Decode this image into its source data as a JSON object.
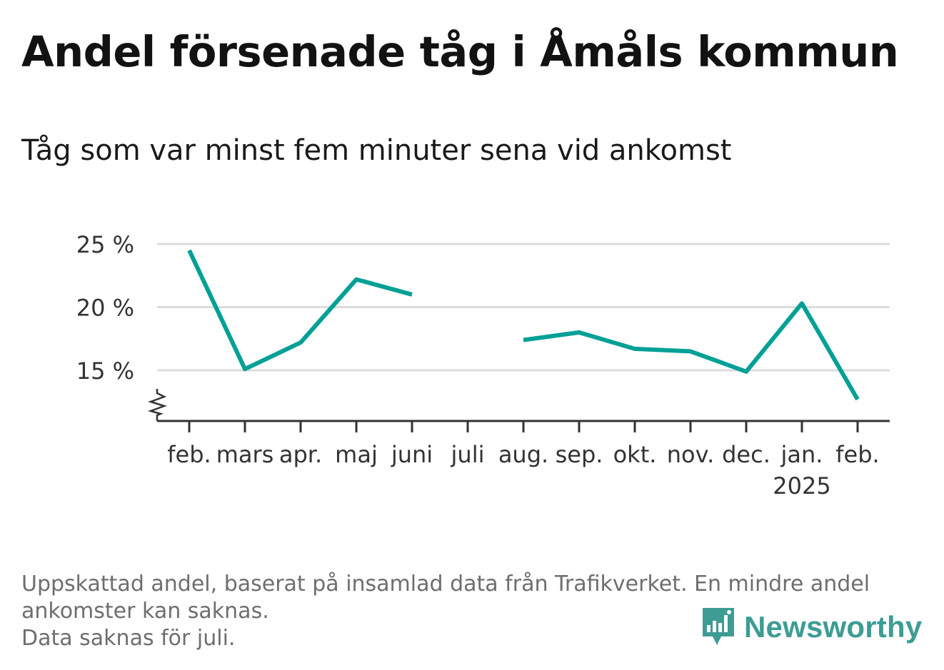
{
  "title": "Andel försenade tåg i Åmåls kommun",
  "subtitle": "Tåg som var minst fem minuter sena vid ankomst",
  "chart_data": {
    "type": "line",
    "categories": [
      "feb.",
      "mars",
      "apr.",
      "maj",
      "juni",
      "juli",
      "aug.",
      "sep.",
      "okt.",
      "nov.",
      "dec.",
      "jan.",
      "feb."
    ],
    "year_labels": [
      "",
      "",
      "",
      "",
      "",
      "",
      "",
      "",
      "",
      "",
      "",
      "2025",
      ""
    ],
    "series": [
      {
        "values": [
          24.5,
          15.1,
          17.2,
          22.2,
          21.0,
          null,
          17.4,
          18.0,
          16.7,
          16.5,
          14.9,
          20.3,
          12.7
        ]
      }
    ],
    "yticks": [
      15,
      20,
      25
    ],
    "ytick_labels": [
      "15 %",
      "20 %",
      "25 %"
    ],
    "ylim": [
      11.0,
      25.5
    ],
    "axis_break": true,
    "grid": true,
    "line_color": "#00a096"
  },
  "footnote": {
    "line1": "Uppskattad andel, baserat på insamlad data från Trafikverket. En mindre andel",
    "line2": "ankomster kan saknas.",
    "line3": "Data saknas för juli."
  },
  "brand": {
    "name": "Newsworthy",
    "color": "#3d9c93",
    "icon": "bar-chart-icon"
  }
}
